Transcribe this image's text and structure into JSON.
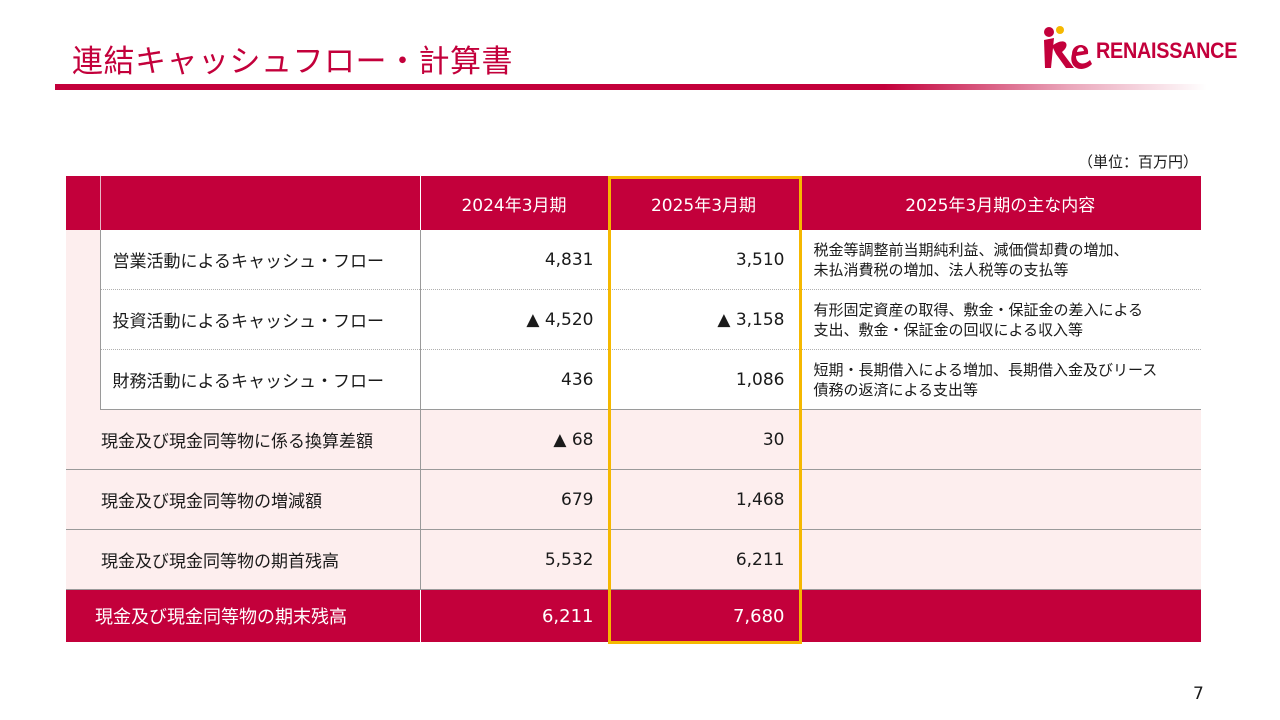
{
  "header": {
    "title": "連結キャッシュフロー・計算書",
    "logo_text": "RENAISSANCE",
    "logo_mark_text": "Re",
    "brand_color": "#c3003b"
  },
  "unit_label": "（単位：百万円）",
  "table": {
    "columns": [
      "2024年3月期",
      "2025年3月期",
      "2025年3月期の主な内容"
    ],
    "highlight_color": "#f5b800",
    "sub_rows": [
      {
        "label": "営業活動によるキャッシュ・フロー",
        "fy2024": "4,831",
        "fy2025": "3,510",
        "note_line1": "税金等調整前当期純利益、減価償却費の増加、",
        "note_line2": "未払消費税の増加、法人税等の支払等"
      },
      {
        "label": "投資活動によるキャッシュ・フロー",
        "fy2024": "▲ 4,520",
        "fy2025": "▲ 3,158",
        "note_line1": "有形固定資産の取得、敷金・保証金の差入による",
        "note_line2": "支出、敷金・保証金の回収による収入等"
      },
      {
        "label": "財務活動によるキャッシュ・フロー",
        "fy2024": "436",
        "fy2025": "1,086",
        "note_line1": "短期・長期借入による増加、長期借入金及びリース",
        "note_line2": "債務の返済による支出等"
      }
    ],
    "main_rows": [
      {
        "label": "現金及び現金同等物に係る換算差額",
        "fy2024": "▲ 68",
        "fy2025": "30"
      },
      {
        "label": "現金及び現金同等物の増減額",
        "fy2024": "679",
        "fy2025": "1,468"
      },
      {
        "label": "現金及び現金同等物の期首残高",
        "fy2024": "5,532",
        "fy2025": "6,211"
      }
    ],
    "total_row": {
      "label": "現金及び現金同等物の期末残高",
      "fy2024": "6,211",
      "fy2025": "7,680"
    }
  },
  "page_number": "7"
}
